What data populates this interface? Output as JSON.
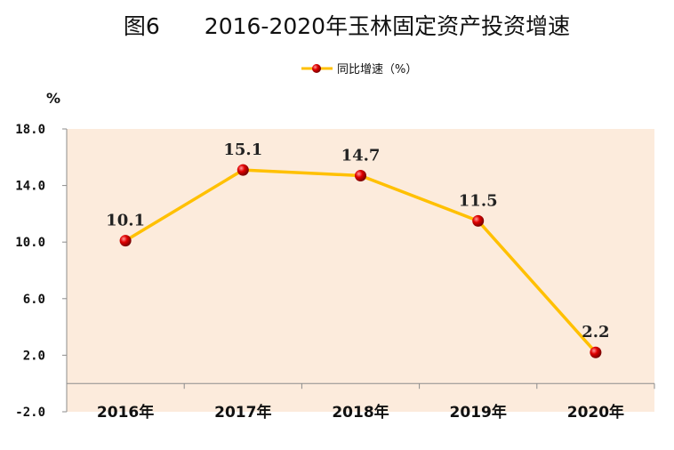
{
  "chart_data": {
    "type": "line",
    "title": "图6　　2016-2020年玉林固定资产投资增速",
    "ylabel": "%",
    "xlabel": "",
    "categories": [
      "2016年",
      "2017年",
      "2018年",
      "2019年",
      "2020年"
    ],
    "series": [
      {
        "name": "同比增速（%）",
        "values": [
          10.1,
          15.1,
          14.7,
          11.5,
          2.2
        ]
      }
    ],
    "data_labels": [
      "10.1",
      "15.1",
      "14.7",
      "11.5",
      "2.2"
    ],
    "ylim": [
      -2.0,
      18.0
    ],
    "yticks": [
      -2.0,
      2.0,
      6.0,
      10.0,
      14.0,
      18.0
    ],
    "ytick_labels": [
      "-2.0",
      "2.0",
      "6.0",
      "10.0",
      "14.0",
      "18.0"
    ],
    "grid": false,
    "legend_position": "top-center",
    "colors": {
      "line": "#FFC000",
      "marker": "#D00000",
      "plot_bg": "#FCEBDC"
    }
  }
}
